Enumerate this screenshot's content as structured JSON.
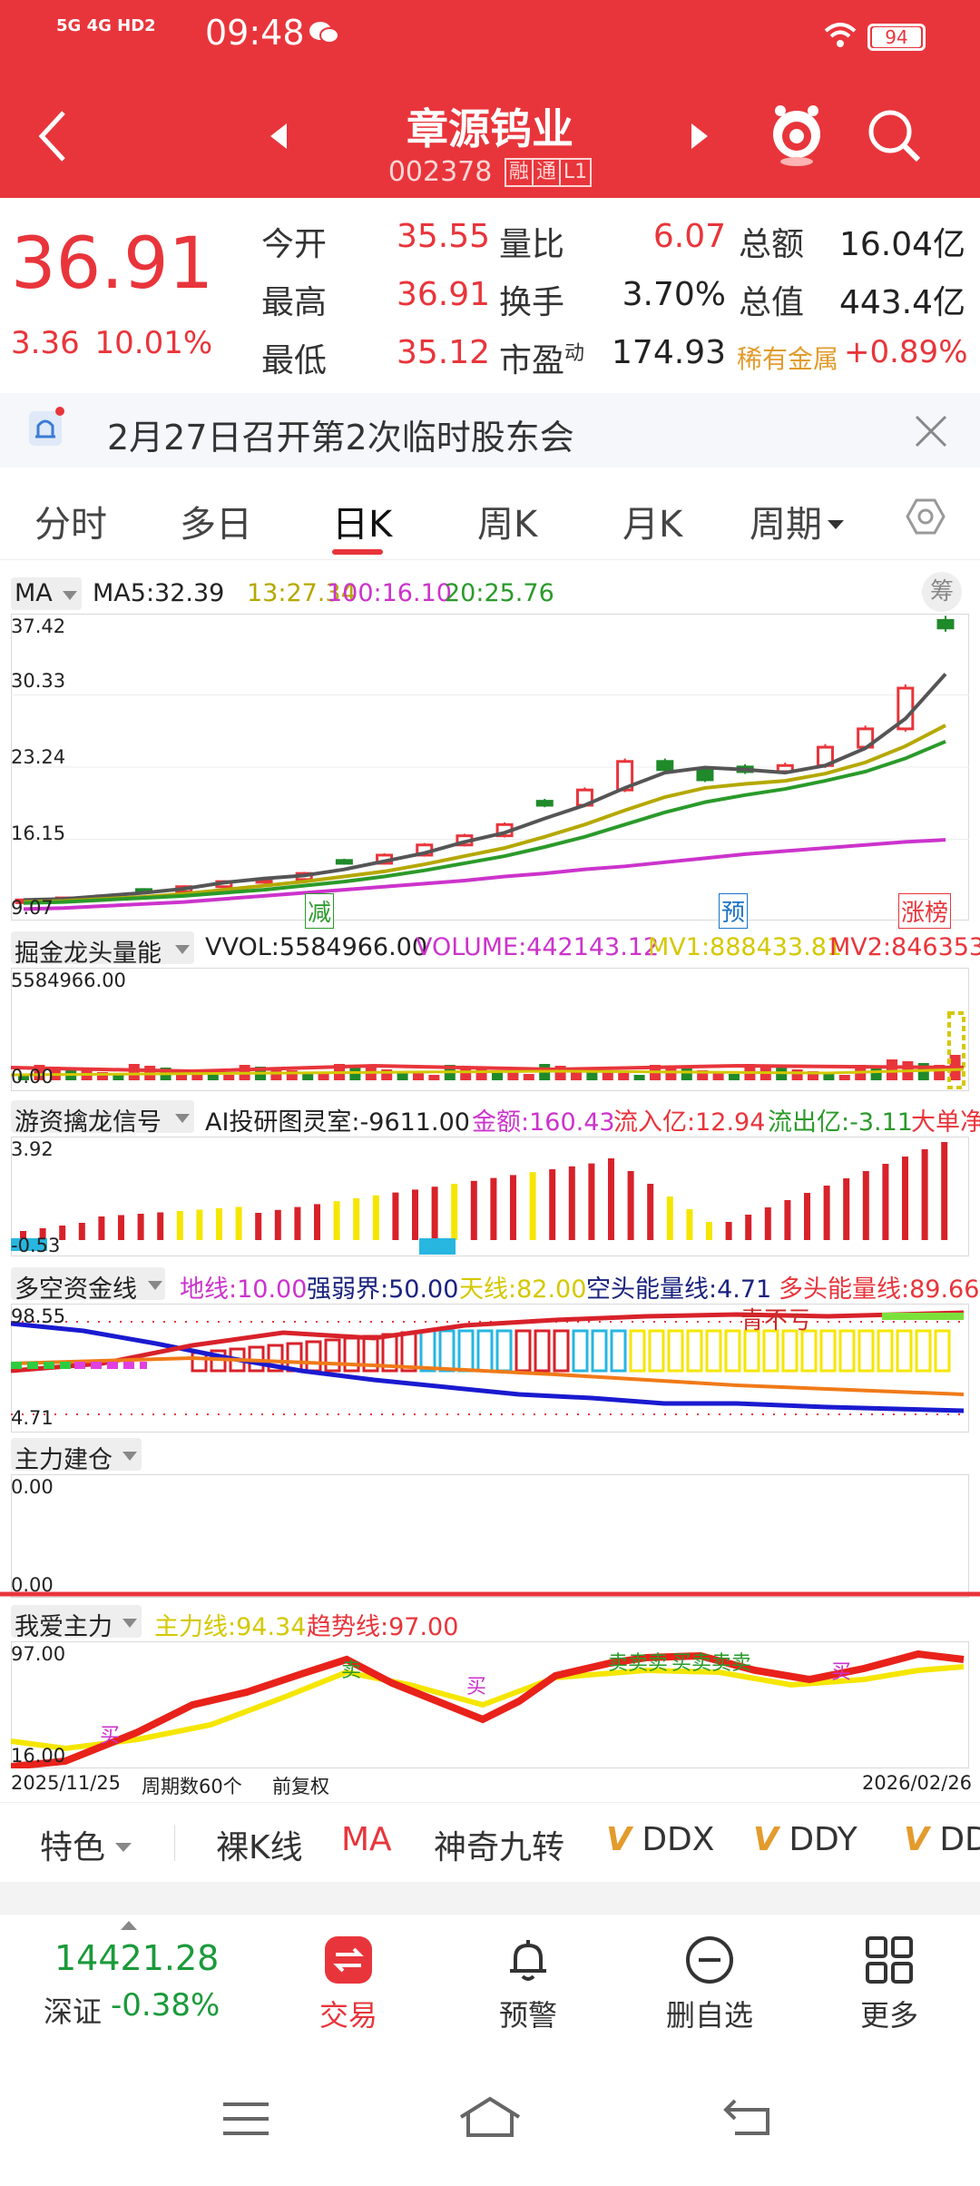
{
  "status_bar": {
    "network": "5G 4G HD2",
    "time": "09:48",
    "battery": "94"
  },
  "header": {
    "title": "章源钨业",
    "code": "002378",
    "tags": [
      "融",
      "通",
      "L1"
    ]
  },
  "quote": {
    "price": "36.91",
    "change": "3.36",
    "change_pct": "10.01%",
    "rows": [
      {
        "l1": "今开",
        "v1": "35.55",
        "l2": "量比",
        "v2": "6.07",
        "l3": "总额",
        "v3": "16.04亿"
      },
      {
        "l1": "最高",
        "v1": "36.91",
        "l2": "换手",
        "v2": "3.70%",
        "l3": "总值",
        "v3": "443.4亿"
      },
      {
        "l1": "最低",
        "v1": "35.12",
        "l2": "市盈",
        "l2_sup": "动",
        "v2": "174.93",
        "l3": "稀有金属",
        "v3": "+0.89%"
      }
    ]
  },
  "notice": {
    "text": "2月27日召开第2次临时股东会"
  },
  "tabs": [
    "分时",
    "多日",
    "日K",
    "周K",
    "月K",
    "周期"
  ],
  "ma_panel": {
    "selector": "MA",
    "chip": "筹",
    "legend": [
      {
        "text": "MA5:32.39",
        "color": "#333333"
      },
      {
        "text": "13:27.34",
        "color": "#b5a800"
      },
      {
        "text": "100:16.10",
        "color": "#cc33cc"
      },
      {
        "text": "20:25.76",
        "color": "#2a9a2a"
      }
    ],
    "ticks": [
      "37.42",
      "30.33",
      "23.24",
      "16.15",
      "9.07"
    ],
    "markers": [
      {
        "text": "减",
        "color": "#2a9a2a"
      },
      {
        "text": "预",
        "color": "#1a73c8"
      },
      {
        "text": "涨榜",
        "color": "#e8353b"
      }
    ]
  },
  "vol_panel": {
    "name": "掘金龙头量能",
    "legend": [
      {
        "text": "VVOL:5584966.00",
        "color": "#333333"
      },
      {
        "text": "VOLUME:442143.12",
        "color": "#cc33cc"
      },
      {
        "text": "MV1:888433.81",
        "color": "#d4c800"
      },
      {
        "text": "MV2:846353.",
        "color": "#e8353b"
      }
    ],
    "ticks": [
      "5584966.00",
      "0.00"
    ]
  },
  "youzi_panel": {
    "name": "游资擒龙信号",
    "legend": [
      {
        "text": "AI投研图灵室:-9611.00",
        "color": "#333333"
      },
      {
        "text": "金额:160.43",
        "color": "#cc33cc"
      },
      {
        "text": "流入亿:12.94",
        "color": "#e8353b"
      },
      {
        "text": "流出亿:-3.11",
        "color": "#2a9a2a"
      },
      {
        "text": "大单净",
        "color": "#e8353b"
      }
    ],
    "ticks": [
      "3.92",
      "-0.53"
    ]
  },
  "duokong_panel": {
    "name": "多空资金线",
    "legend": [
      {
        "text": "地线:10.00",
        "color": "#cc33cc"
      },
      {
        "text": "强弱界:50.00",
        "color": "#1a237e"
      },
      {
        "text": "天线:82.00",
        "color": "#d4c800"
      },
      {
        "text": "空头能量线:4.71",
        "color": "#1a237e"
      },
      {
        "text": "多头能量线:89.66",
        "color": "#e8353b"
      }
    ],
    "ticks": [
      "98.55",
      "4.71"
    ],
    "annotation": "青不亏"
  },
  "zhuli_panel": {
    "name": "主力建仓",
    "ticks": [
      "0.00",
      "0.00"
    ]
  },
  "woai_panel": {
    "name": "我爱主力",
    "legend": [
      {
        "text": "主力线:94.34",
        "color": "#d4c800"
      },
      {
        "text": "趋势线:97.00",
        "color": "#e8353b"
      }
    ],
    "ticks": [
      "97.00",
      "16.00"
    ],
    "signals": [
      "买",
      "卖",
      "买",
      "卖卖卖",
      "买卖卖卖",
      "买"
    ]
  },
  "footer_axis": {
    "start": "2025/11/25",
    "period": "周期数60个",
    "adj": "前复权",
    "end": "2026/02/26"
  },
  "indicator_bar": {
    "special": "特色",
    "items": [
      "裸K线",
      "MA",
      "神奇九转",
      "DDX",
      "DDY",
      "DD"
    ]
  },
  "bottom": {
    "index_value": "14421.28",
    "index_name": "深证",
    "index_change": "-0.38%",
    "nav": [
      "交易",
      "预警",
      "删自选",
      "更多"
    ]
  },
  "chart_data": [
    {
      "type": "candlestick",
      "title": "",
      "x_range": [
        "2025/11/25",
        "2026/02/26"
      ],
      "ylim": [
        9.07,
        37.42
      ],
      "y_ticks": [
        37.42,
        30.33,
        23.24,
        16.15,
        9.07
      ],
      "series": [
        {
          "name": "MA5",
          "values": [
            10.2,
            10.3,
            10.6,
            10.9,
            11.3,
            11.9,
            12.3,
            12.6,
            13.2,
            14.0,
            14.8,
            15.9,
            16.8,
            18.2,
            19.5,
            21.2,
            22.7,
            23.2,
            23.0,
            22.7,
            23.4,
            25.1,
            28.0,
            32.39
          ]
        },
        {
          "name": "13",
          "values": [
            10.0,
            10.1,
            10.3,
            10.5,
            10.8,
            11.2,
            11.6,
            12.0,
            12.5,
            13.0,
            13.7,
            14.5,
            15.3,
            16.4,
            17.6,
            19.0,
            20.3,
            21.2,
            21.6,
            21.9,
            22.6,
            23.7,
            25.3,
            27.34
          ]
        },
        {
          "name": "20",
          "values": [
            9.9,
            10.0,
            10.2,
            10.4,
            10.6,
            10.9,
            11.2,
            11.6,
            12.0,
            12.5,
            13.1,
            13.8,
            14.5,
            15.4,
            16.4,
            17.6,
            18.8,
            19.8,
            20.5,
            21.1,
            21.9,
            22.8,
            24.1,
            25.76
          ]
        },
        {
          "name": "100",
          "values": [
            9.3,
            9.4,
            9.6,
            9.8,
            10.0,
            10.3,
            10.6,
            10.9,
            11.2,
            11.5,
            11.8,
            12.1,
            12.5,
            12.8,
            13.2,
            13.5,
            13.9,
            14.3,
            14.7,
            15.0,
            15.3,
            15.6,
            15.9,
            16.1
          ]
        }
      ],
      "closes": [
        10.2,
        10.4,
        10.6,
        11.0,
        11.5,
        12.0,
        12.2,
        12.8,
        13.8,
        14.6,
        15.6,
        16.5,
        17.6,
        19.5,
        21.0,
        23.8,
        23.0,
        22.0,
        22.8,
        23.4,
        25.2,
        27.0,
        31.0,
        36.91
      ]
    }
  ]
}
